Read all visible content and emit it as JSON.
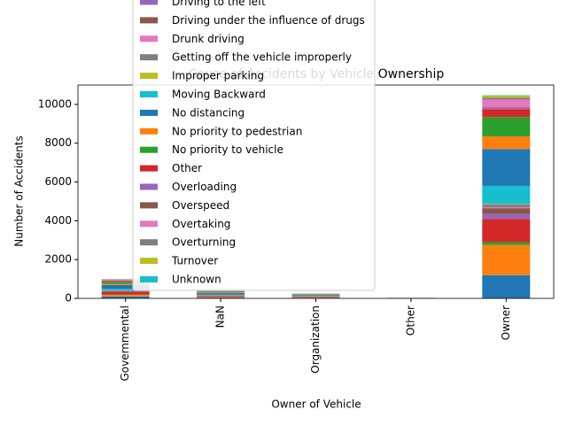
{
  "chart_data": {
    "type": "stacked_bar",
    "title": "Cause of Accidents by Vehicle Ownership",
    "x_label": "Owner of Vehicle",
    "y_label": "Number of Accidents",
    "categories": [
      "Governmental",
      "NaN",
      "Organization",
      "Other",
      "Owner"
    ],
    "ylim": [
      0,
      11000
    ],
    "yticks": [
      0,
      2000,
      4000,
      6000,
      8000,
      10000
    ],
    "grid": false,
    "series": [
      {
        "color": "#1f77b4",
        "values": [
          100,
          40,
          25,
          3,
          1200
        ]
      },
      {
        "color": "#ff7f0e",
        "values": [
          80,
          30,
          20,
          2,
          1550
        ]
      },
      {
        "color": "#2ca02c",
        "values": [
          20,
          10,
          5,
          1,
          150
        ]
      },
      {
        "color": "#d62728",
        "values": [
          120,
          50,
          30,
          4,
          1200
        ]
      },
      {
        "name": "Driving to the left",
        "color": "#9467bd",
        "values": [
          20,
          10,
          5,
          1,
          250
        ]
      },
      {
        "name": "Driving under the influence of drugs",
        "color": "#8c564b",
        "values": [
          40,
          15,
          10,
          1,
          300
        ]
      },
      {
        "name": "Drunk driving",
        "color": "#e377c2",
        "values": [
          10,
          5,
          2,
          0,
          50
        ]
      },
      {
        "name": "Getting off the vehicle improperly",
        "color": "#7f7f7f",
        "values": [
          20,
          10,
          5,
          1,
          150
        ]
      },
      {
        "name": "Improper parking",
        "color": "#bcbd22",
        "values": [
          5,
          5,
          2,
          0,
          20
        ]
      },
      {
        "name": "Moving Backward",
        "color": "#17becf",
        "values": [
          80,
          30,
          20,
          2,
          930
        ]
      },
      {
        "name": "No distancing",
        "color": "#1f77b4",
        "values": [
          200,
          80,
          50,
          6,
          1900
        ]
      },
      {
        "name": "No priority to pedestrian",
        "color": "#ff7f0e",
        "values": [
          60,
          25,
          15,
          2,
          650
        ]
      },
      {
        "name": "No priority to vehicle",
        "color": "#2ca02c",
        "values": [
          100,
          40,
          25,
          3,
          1000
        ]
      },
      {
        "name": "Other",
        "color": "#d62728",
        "values": [
          50,
          20,
          10,
          1,
          400
        ]
      },
      {
        "name": "Overloading",
        "color": "#9467bd",
        "values": [
          10,
          5,
          3,
          0,
          50
        ]
      },
      {
        "name": "Overspeed",
        "color": "#8c564b",
        "values": [
          10,
          5,
          3,
          0,
          50
        ]
      },
      {
        "name": "Overtaking",
        "color": "#e377c2",
        "values": [
          40,
          20,
          10,
          2,
          400
        ]
      },
      {
        "name": "Overturning",
        "color": "#7f7f7f",
        "values": [
          15,
          10,
          4,
          0,
          100
        ]
      },
      {
        "name": "Turnover",
        "color": "#bcbd22",
        "values": [
          10,
          5,
          3,
          0,
          100
        ]
      },
      {
        "name": "Unknown",
        "color": "#17becf",
        "values": [
          10,
          60,
          3,
          1,
          20
        ]
      }
    ]
  }
}
